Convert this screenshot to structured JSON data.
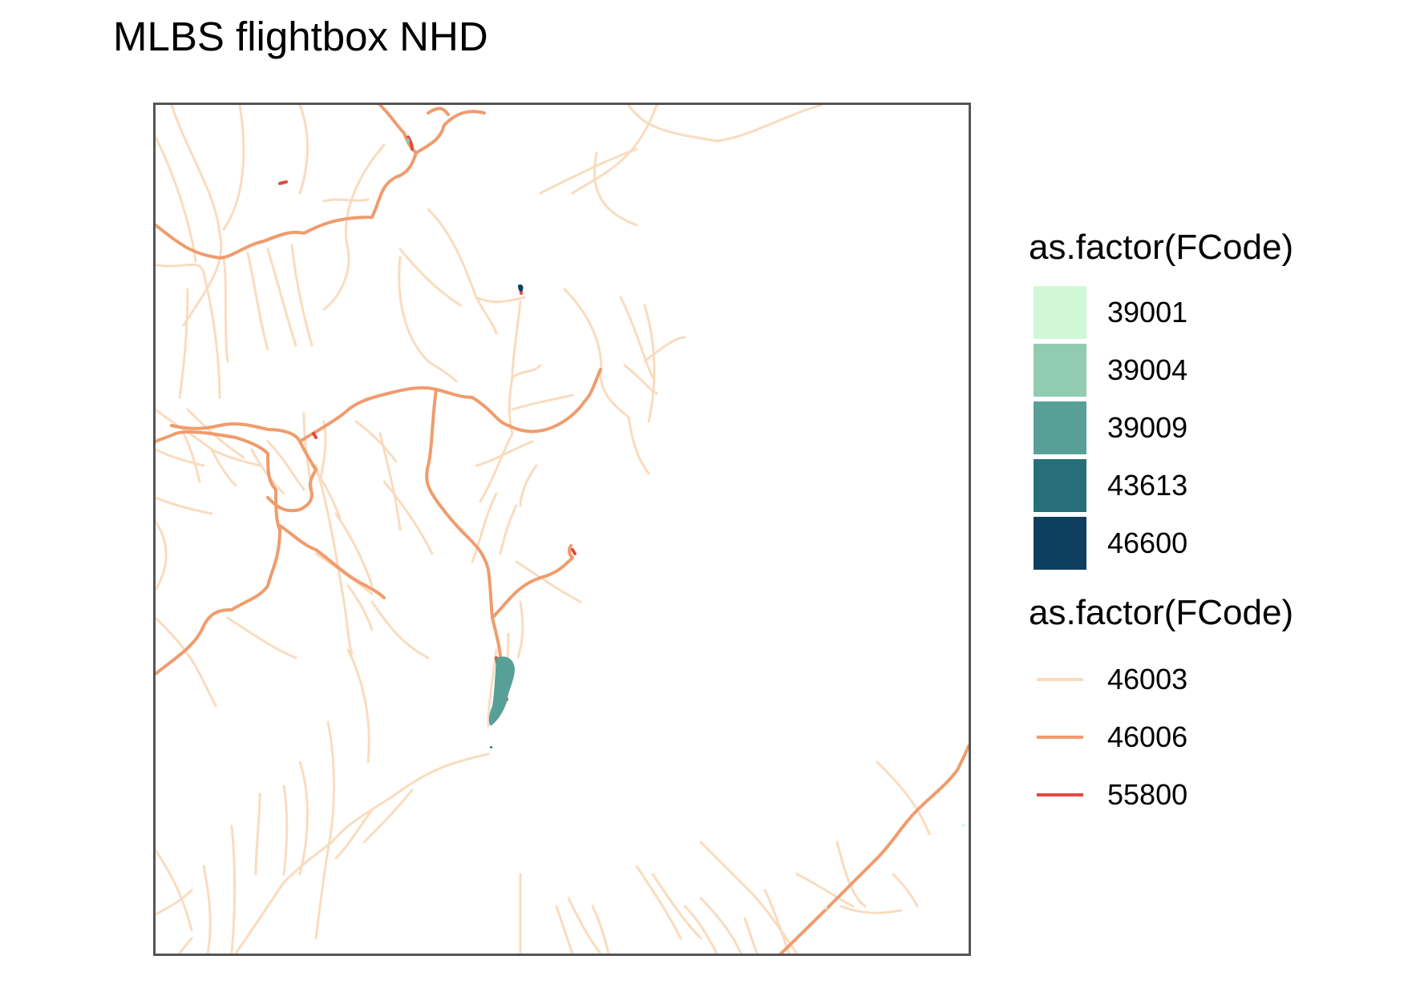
{
  "title": "MLBS flightbox NHD",
  "map": {
    "feature_colors": {
      "39001": "#d1f8d6",
      "39004": "#91cbb2",
      "39009": "#589f98",
      "43613": "#276e7a",
      "46600": "#0f3f5e",
      "46003": "#f9dcbf",
      "46006": "#ef9c6d",
      "55800": "#e14b3c"
    },
    "panel_border_color": "#555555"
  },
  "legend": {
    "waterbodies": {
      "title": "as.factor(FCode)",
      "items": [
        {
          "label": "39001",
          "color": "#d1f8d6"
        },
        {
          "label": "39004",
          "color": "#91cbb2"
        },
        {
          "label": "39009",
          "color": "#589f98"
        },
        {
          "label": "43613",
          "color": "#276e7a"
        },
        {
          "label": "46600",
          "color": "#0f3f5e"
        }
      ]
    },
    "flowlines": {
      "title": "as.factor(FCode)",
      "items": [
        {
          "label": "46003",
          "color": "#f9dcbf"
        },
        {
          "label": "46006",
          "color": "#ef9c6d"
        },
        {
          "label": "55800",
          "color": "#e14b3c"
        }
      ]
    }
  }
}
